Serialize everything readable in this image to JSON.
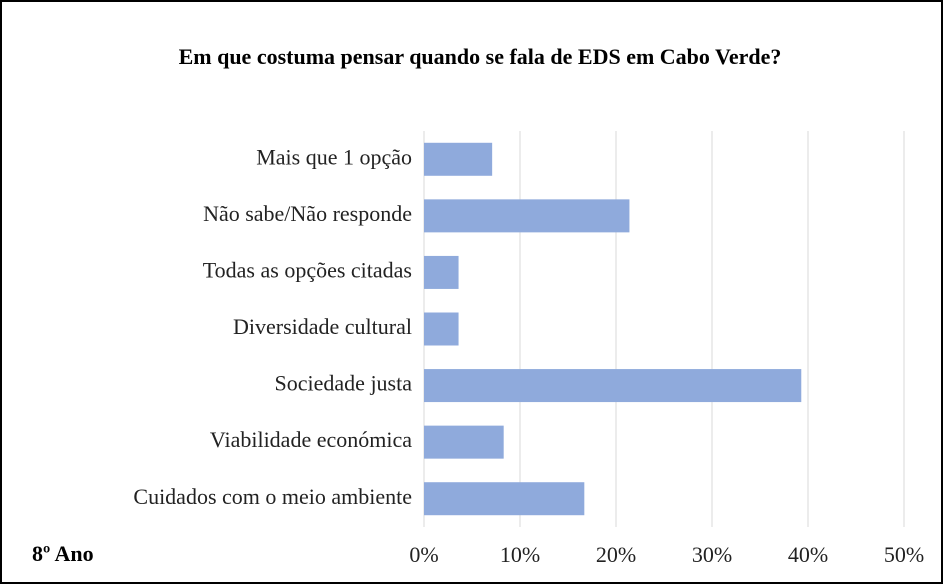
{
  "chart_data": {
    "type": "barh",
    "title": "Em que costuma pensar quando se fala de EDS em Cabo Verde?",
    "annotation": "8º Ano",
    "categories": [
      "Mais que 1 opção",
      "Não sabe/Não responde",
      "Todas as opções citadas",
      "Diversidade cultural",
      "Sociedade justa",
      "Viabilidade económica",
      "Cuidados com o meio ambiente"
    ],
    "values": [
      7.1,
      21.4,
      3.6,
      3.6,
      39.3,
      8.3,
      16.7
    ],
    "color": "#8faadc",
    "xlim": [
      0,
      50
    ],
    "xticks": [
      {
        "value": 0,
        "label": "0%"
      },
      {
        "value": 10,
        "label": "10%"
      },
      {
        "value": 20,
        "label": "20%"
      },
      {
        "value": 30,
        "label": "30%"
      },
      {
        "value": 40,
        "label": "40%"
      },
      {
        "value": 50,
        "label": "50%"
      }
    ],
    "grid": true
  }
}
